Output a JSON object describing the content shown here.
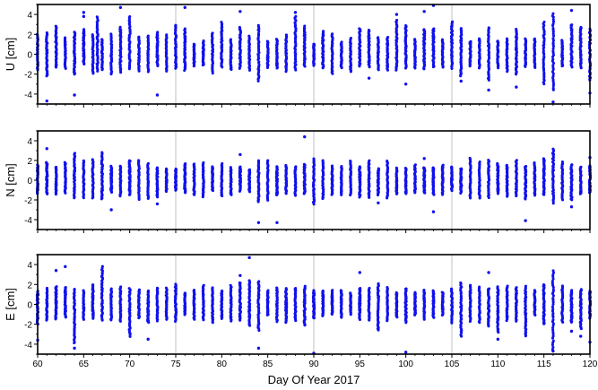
{
  "chart_data": {
    "type": "scatter",
    "xlabel": "Day Of Year 2017",
    "xlim": [
      60,
      120
    ],
    "xticks": [
      60,
      65,
      70,
      75,
      80,
      85,
      90,
      95,
      100,
      105,
      110,
      115,
      120
    ],
    "vertical_gridlines_at": [
      75,
      90,
      105
    ],
    "marker_color": "#1010ee",
    "panels": [
      {
        "ylabel": "U [cm]",
        "ylim": [
          -5,
          5
        ],
        "yticks": [
          -4,
          -2,
          0,
          2,
          4
        ],
        "series": [
          {
            "x": 61.0,
            "range": [
              -2.2,
              2.2
            ],
            "outliers": [
              -4.7
            ]
          },
          {
            "x": 62.0,
            "range": [
              -1.3,
              2.8
            ],
            "outliers": []
          },
          {
            "x": 64.0,
            "range": [
              -2.0,
              2.2
            ],
            "outliers": [
              -4.1
            ]
          },
          {
            "x": 65.0,
            "range": [
              -1.0,
              2.5
            ],
            "outliers": [
              4.2,
              3.8
            ]
          },
          {
            "x": 66.5,
            "range": [
              -1.7,
              3.8
            ],
            "outliers": []
          },
          {
            "x": 69.0,
            "range": [
              -1.8,
              2.7
            ],
            "outliers": [
              4.7
            ]
          },
          {
            "x": 70.0,
            "range": [
              -1.5,
              3.8
            ],
            "outliers": []
          },
          {
            "x": 73.0,
            "range": [
              -1.2,
              2.2
            ],
            "outliers": [
              -4.1
            ]
          },
          {
            "x": 75.0,
            "range": [
              -1.4,
              2.9
            ],
            "outliers": []
          },
          {
            "x": 76.0,
            "range": [
              -1.6,
              2.6
            ],
            "outliers": [
              4.7
            ]
          },
          {
            "x": 80.0,
            "range": [
              -1.3,
              3.2
            ],
            "outliers": []
          },
          {
            "x": 82.0,
            "range": [
              -1.4,
              2.7
            ],
            "outliers": [
              4.3
            ]
          },
          {
            "x": 84.0,
            "range": [
              -2.7,
              2.9
            ],
            "outliers": []
          },
          {
            "x": 88.0,
            "range": [
              -1.6,
              3.8
            ],
            "outliers": [
              4.2
            ]
          },
          {
            "x": 89.0,
            "range": [
              -1.2,
              2.8
            ],
            "outliers": []
          },
          {
            "x": 91.0,
            "range": [
              -1.4,
              2.3
            ],
            "outliers": []
          },
          {
            "x": 95.0,
            "range": [
              -1.2,
              2.6
            ],
            "outliers": []
          },
          {
            "x": 96.0,
            "range": [
              -1.3,
              2.4
            ],
            "outliers": [
              -2.4
            ]
          },
          {
            "x": 99.0,
            "range": [
              -1.6,
              3.4
            ],
            "outliers": [
              4.0
            ]
          },
          {
            "x": 100.0,
            "range": [
              -1.4,
              2.9
            ],
            "outliers": [
              -3.0
            ]
          },
          {
            "x": 102.0,
            "range": [
              -1.5,
              2.5
            ],
            "outliers": [
              4.3
            ]
          },
          {
            "x": 103.0,
            "range": [
              -1.3,
              2.6
            ],
            "outliers": [
              4.9
            ]
          },
          {
            "x": 105.0,
            "range": [
              -1.4,
              3.3
            ],
            "outliers": []
          },
          {
            "x": 106.0,
            "range": [
              -2.2,
              2.6
            ],
            "outliers": [
              -2.7
            ]
          },
          {
            "x": 109.0,
            "range": [
              -2.6,
              2.7
            ],
            "outliers": [
              -3.6
            ]
          },
          {
            "x": 112.0,
            "range": [
              -2.0,
              2.5
            ],
            "outliers": [
              -3.3
            ]
          },
          {
            "x": 115.0,
            "range": [
              -3.0,
              3.2
            ],
            "outliers": []
          },
          {
            "x": 116.0,
            "range": [
              -3.6,
              4.1
            ],
            "outliers": [
              -4.8
            ]
          },
          {
            "x": 118.0,
            "range": [
              -1.3,
              3.0
            ],
            "outliers": [
              4.4
            ]
          },
          {
            "x": 119.0,
            "range": [
              -1.4,
              2.7
            ],
            "outliers": []
          },
          {
            "x": 120.0,
            "range": [
              -2.6,
              2.5
            ],
            "outliers": [
              -3.9
            ]
          }
        ]
      },
      {
        "ylabel": "N [cm]",
        "ylim": [
          -5,
          5
        ],
        "yticks": [
          -4,
          -2,
          0,
          2,
          4
        ],
        "series": [
          {
            "x": 61.0,
            "range": [
              -1.4,
              1.8
            ],
            "outliers": [
              3.2
            ]
          },
          {
            "x": 64.0,
            "range": [
              -1.8,
              2.7
            ],
            "outliers": []
          },
          {
            "x": 67.0,
            "range": [
              -1.9,
              2.8
            ],
            "outliers": []
          },
          {
            "x": 68.0,
            "range": [
              -1.2,
              1.4
            ],
            "outliers": [
              -3.0
            ]
          },
          {
            "x": 70.0,
            "range": [
              -1.5,
              2.0
            ],
            "outliers": []
          },
          {
            "x": 73.0,
            "range": [
              -1.7,
              1.3
            ],
            "outliers": [
              -2.4
            ]
          },
          {
            "x": 76.0,
            "range": [
              -1.3,
              1.7
            ],
            "outliers": []
          },
          {
            "x": 82.0,
            "range": [
              -1.1,
              1.4
            ],
            "outliers": [
              2.6
            ]
          },
          {
            "x": 84.0,
            "range": [
              -2.2,
              2.0
            ],
            "outliers": [
              -4.3
            ]
          },
          {
            "x": 86.0,
            "range": [
              -1.5,
              1.4
            ],
            "outliers": [
              -4.3
            ]
          },
          {
            "x": 89.0,
            "range": [
              -1.4,
              1.6
            ],
            "outliers": [
              4.4
            ]
          },
          {
            "x": 90.0,
            "range": [
              -2.4,
              2.2
            ],
            "outliers": []
          },
          {
            "x": 95.0,
            "range": [
              -1.7,
              1.4
            ],
            "outliers": []
          },
          {
            "x": 97.0,
            "range": [
              -1.5,
              1.2
            ],
            "outliers": [
              -2.3
            ]
          },
          {
            "x": 102.0,
            "range": [
              -1.3,
              1.3
            ],
            "outliers": [
              2.2
            ]
          },
          {
            "x": 103.0,
            "range": [
              -1.5,
              1.3
            ],
            "outliers": [
              -3.2
            ]
          },
          {
            "x": 106.0,
            "range": [
              -1.3,
              1.2
            ],
            "outliers": []
          },
          {
            "x": 110.0,
            "range": [
              -1.4,
              1.7
            ],
            "outliers": []
          },
          {
            "x": 113.0,
            "range": [
              -1.9,
              1.4
            ],
            "outliers": [
              -4.1
            ]
          },
          {
            "x": 115.0,
            "range": [
              -1.5,
              2.2
            ],
            "outliers": []
          },
          {
            "x": 116.0,
            "range": [
              -2.3,
              3.2
            ],
            "outliers": []
          },
          {
            "x": 118.0,
            "range": [
              -2.0,
              1.6
            ],
            "outliers": [
              -2.7
            ]
          },
          {
            "x": 120.0,
            "range": [
              -1.3,
              1.5
            ],
            "outliers": [
              2.3
            ]
          }
        ]
      },
      {
        "ylabel": "E [cm]",
        "ylim": [
          -5,
          5
        ],
        "yticks": [
          -4,
          -2,
          0,
          2,
          4
        ],
        "series": [
          {
            "x": 60.0,
            "range": [
              -2.0,
              1.3
            ],
            "outliers": [
              -3.6
            ]
          },
          {
            "x": 62.0,
            "range": [
              -1.5,
              1.8
            ],
            "outliers": [
              3.4
            ]
          },
          {
            "x": 63.0,
            "range": [
              -1.3,
              1.7
            ],
            "outliers": [
              3.8
            ]
          },
          {
            "x": 64.0,
            "range": [
              -3.9,
              1.5
            ],
            "outliers": [
              -4.4
            ]
          },
          {
            "x": 66.0,
            "range": [
              -1.4,
              2.0
            ],
            "outliers": []
          },
          {
            "x": 67.0,
            "range": [
              -1.6,
              3.8
            ],
            "outliers": []
          },
          {
            "x": 70.0,
            "range": [
              -3.2,
              1.6
            ],
            "outliers": []
          },
          {
            "x": 72.0,
            "range": [
              -1.8,
              1.4
            ],
            "outliers": [
              -3.5
            ]
          },
          {
            "x": 75.0,
            "range": [
              -1.7,
              2.0
            ],
            "outliers": []
          },
          {
            "x": 82.0,
            "range": [
              -1.6,
              2.2
            ],
            "outliers": [
              2.9
            ]
          },
          {
            "x": 83.0,
            "range": [
              -2.1,
              2.4
            ],
            "outliers": [
              4.7
            ]
          },
          {
            "x": 84.0,
            "range": [
              -2.6,
              2.3
            ],
            "outliers": [
              -4.4
            ]
          },
          {
            "x": 87.0,
            "range": [
              -1.8,
              1.6
            ],
            "outliers": []
          },
          {
            "x": 89.0,
            "range": [
              -2.1,
              1.8
            ],
            "outliers": []
          },
          {
            "x": 90.0,
            "range": [
              -1.4,
              1.4
            ],
            "outliers": [
              -4.9
            ]
          },
          {
            "x": 95.0,
            "range": [
              -1.5,
              1.6
            ],
            "outliers": [
              3.2
            ]
          },
          {
            "x": 97.0,
            "range": [
              -2.6,
              2.1
            ],
            "outliers": []
          },
          {
            "x": 100.0,
            "range": [
              -1.8,
              1.6
            ],
            "outliers": [
              -4.8
            ]
          },
          {
            "x": 106.0,
            "range": [
              -3.2,
              2.2
            ],
            "outliers": []
          },
          {
            "x": 109.0,
            "range": [
              -2.2,
              1.6
            ],
            "outliers": [
              3.2
            ]
          },
          {
            "x": 110.0,
            "range": [
              -2.8,
              1.8
            ],
            "outliers": [
              -3.5
            ]
          },
          {
            "x": 113.0,
            "range": [
              -3.2,
              1.8
            ],
            "outliers": []
          },
          {
            "x": 115.0,
            "range": [
              -2.0,
              2.0
            ],
            "outliers": []
          },
          {
            "x": 116.0,
            "range": [
              -4.5,
              3.4
            ],
            "outliers": [
              -4.7
            ]
          },
          {
            "x": 118.0,
            "range": [
              -1.8,
              1.4
            ],
            "outliers": [
              -2.7
            ]
          },
          {
            "x": 119.0,
            "range": [
              -2.4,
              1.5
            ],
            "outliers": [
              -3.2
            ]
          },
          {
            "x": 120.0,
            "range": [
              -1.4,
              1.3
            ],
            "outliers": [
              -3.8
            ]
          }
        ]
      }
    ]
  }
}
